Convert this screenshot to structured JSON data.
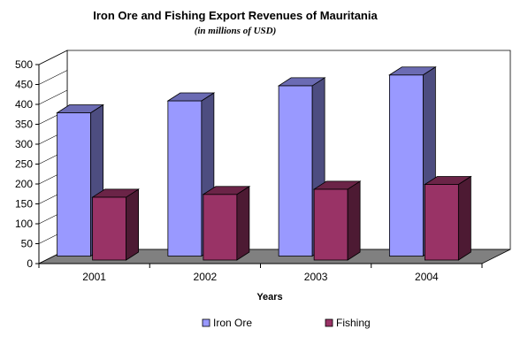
{
  "chart_data": {
    "type": "bar",
    "title": "Iron Ore and Fishing Export Revenues of Mauritania",
    "subtitle": "(in millions of USD)",
    "xlabel": "Years",
    "ylabel": "",
    "categories": [
      "2001",
      "2002",
      "2003",
      "2004"
    ],
    "series": [
      {
        "name": "Iron Ore",
        "values": [
          360,
          390,
          428,
          455
        ],
        "color": "#9999ff",
        "side_color": "#4d4d80",
        "top_color": "#6b6bb3"
      },
      {
        "name": "Fishing",
        "values": [
          158,
          165,
          178,
          190
        ],
        "color": "#993366",
        "side_color": "#4d1a33",
        "top_color": "#6b2447"
      }
    ],
    "ylim": [
      0,
      500
    ],
    "yticks": [
      "0",
      "50",
      "100",
      "150",
      "200",
      "250",
      "300",
      "350",
      "400",
      "450",
      "500"
    ],
    "grid": false,
    "legend_position": "bottom",
    "floor_color": "#808080"
  }
}
